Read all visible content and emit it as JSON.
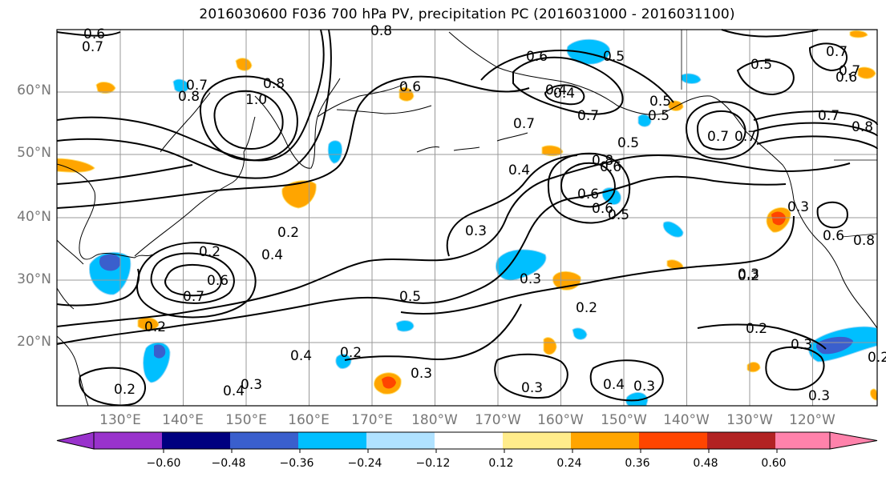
{
  "title": "2016030600 F036 700 hPa PV, precipitation PC (2016031000 - 2016031100)",
  "lat_labels": [
    "60°N",
    "50°N",
    "40°N",
    "30°N",
    "20°N"
  ],
  "lon_labels": [
    "130°E",
    "140°E",
    "150°E",
    "160°E",
    "170°E",
    "180°W",
    "170°W",
    "160°W",
    "150°W",
    "140°W",
    "130°W",
    "120°W"
  ],
  "contour_labels": [
    "0.6",
    "0.7",
    "0.7",
    "1.0",
    "0.8",
    "0.8",
    "0.8",
    "0.6",
    "0.4",
    "0.7",
    "0.5",
    "0.5",
    "0.5",
    "0.8",
    "0.5",
    "0.6",
    "0.6",
    "0.4",
    "0.3",
    "0.3",
    "0.2",
    "0.4",
    "0.2",
    "0.6",
    "0.7",
    "0.5",
    "0.3",
    "0.2",
    "0.2",
    "0.4",
    "0.2",
    "0.3",
    "0.4",
    "0.3",
    "0.2",
    "0.3",
    "0.3",
    "0.2",
    "0.7",
    "0.6",
    "0.6",
    "0.7",
    "0.8",
    "0.7",
    "0.3",
    "0.6",
    "0.8",
    "0.7",
    "0.2",
    "0.3",
    "0.4",
    "0.3",
    "0.2",
    "0.5",
    "0.4",
    "0.6",
    "0.7",
    "0.5",
    "0.7"
  ],
  "colorbar": {
    "ticks": [
      "−0.60",
      "−0.48",
      "−0.36",
      "−0.24",
      "−0.12",
      "0.12",
      "0.24",
      "0.36",
      "0.48",
      "0.60"
    ],
    "colors": [
      "#9932cc",
      "#000080",
      "#3a5fcd",
      "#00bfff",
      "#b0e2ff",
      "#ffffff",
      "#ffec8b",
      "#ffa500",
      "#ff4500",
      "#b22222",
      "#ff82ab"
    ]
  },
  "colors": {
    "grid": "#999999",
    "contour": "#000000",
    "axis_label": "#777777"
  }
}
